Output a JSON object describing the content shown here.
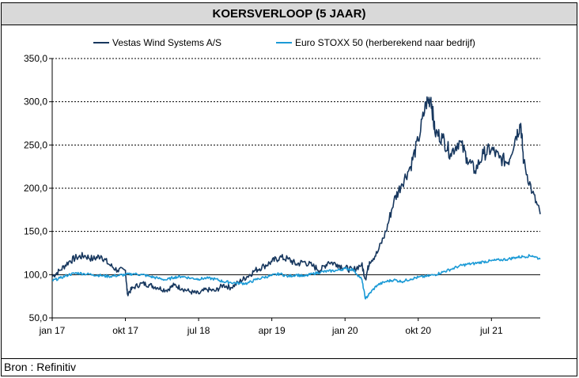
{
  "title": "KOERSVERLOOP (5 JAAR)",
  "source": "Bron : Refinitiv",
  "chart_data": {
    "type": "line",
    "title": "KOERSVERLOOP (5 JAAR)",
    "ylim": [
      50,
      350
    ],
    "yticks": [
      "50,0",
      "100,0",
      "150,0",
      "200,0",
      "250,0",
      "300,0",
      "350,0"
    ],
    "ytick_values": [
      50,
      100,
      150,
      200,
      250,
      300,
      350
    ],
    "xticks": [
      "jan 17",
      "okt 17",
      "jul 18",
      "apr 19",
      "jan 20",
      "okt 20",
      "jul 21"
    ],
    "xtick_values": [
      2017.0,
      2017.75,
      2018.5,
      2019.25,
      2020.0,
      2020.75,
      2021.5
    ],
    "xlim": [
      2017.0,
      2022.0
    ],
    "grid": "horizontal dashed",
    "legend": "top",
    "series": [
      {
        "name": "Vestas Wind Systems A/S",
        "color": "#17375e",
        "x": [
          2017.0,
          2017.08,
          2017.17,
          2017.25,
          2017.33,
          2017.42,
          2017.5,
          2017.58,
          2017.67,
          2017.75,
          2017.77,
          2017.83,
          2017.92,
          2018.0,
          2018.08,
          2018.17,
          2018.25,
          2018.33,
          2018.42,
          2018.5,
          2018.58,
          2018.67,
          2018.75,
          2018.83,
          2018.92,
          2019.0,
          2019.08,
          2019.17,
          2019.25,
          2019.33,
          2019.42,
          2019.5,
          2019.58,
          2019.67,
          2019.75,
          2019.83,
          2019.92,
          2020.0,
          2020.08,
          2020.17,
          2020.21,
          2020.25,
          2020.33,
          2020.42,
          2020.5,
          2020.58,
          2020.67,
          2020.75,
          2020.83,
          2020.88,
          2020.92,
          2021.0,
          2021.08,
          2021.17,
          2021.25,
          2021.33,
          2021.42,
          2021.5,
          2021.58,
          2021.67,
          2021.75,
          2021.8,
          2021.83,
          2021.92,
          2022.0
        ],
        "values": [
          98,
          105,
          115,
          120,
          122,
          118,
          122,
          112,
          105,
          105,
          78,
          85,
          90,
          88,
          85,
          82,
          88,
          84,
          80,
          78,
          83,
          81,
          88,
          85,
          92,
          98,
          105,
          110,
          115,
          120,
          118,
          112,
          115,
          110,
          105,
          115,
          112,
          108,
          105,
          112,
          95,
          115,
          125,
          150,
          185,
          205,
          225,
          255,
          298,
          305,
          265,
          258,
          240,
          255,
          235,
          220,
          240,
          245,
          235,
          230,
          260,
          275,
          230,
          195,
          170
        ]
      },
      {
        "name": "Euro STOXX 50 (herberekend naar bedrijf)",
        "color": "#1b9ad6",
        "x": [
          2017.0,
          2017.08,
          2017.17,
          2017.25,
          2017.33,
          2017.42,
          2017.5,
          2017.58,
          2017.67,
          2017.75,
          2017.83,
          2017.92,
          2018.0,
          2018.08,
          2018.17,
          2018.25,
          2018.33,
          2018.42,
          2018.5,
          2018.58,
          2018.67,
          2018.75,
          2018.83,
          2018.92,
          2019.0,
          2019.08,
          2019.17,
          2019.25,
          2019.33,
          2019.42,
          2019.5,
          2019.58,
          2019.67,
          2019.75,
          2019.83,
          2019.92,
          2020.0,
          2020.08,
          2020.17,
          2020.21,
          2020.25,
          2020.33,
          2020.42,
          2020.5,
          2020.58,
          2020.67,
          2020.75,
          2020.83,
          2020.92,
          2021.0,
          2021.08,
          2021.17,
          2021.25,
          2021.33,
          2021.42,
          2021.5,
          2021.58,
          2021.67,
          2021.75,
          2021.83,
          2021.92,
          2022.0
        ],
        "values": [
          93,
          96,
          100,
          102,
          101,
          100,
          99,
          98,
          99,
          100,
          101,
          100,
          98,
          96,
          94,
          97,
          98,
          96,
          95,
          96,
          95,
          92,
          91,
          90,
          90,
          94,
          97,
          99,
          101,
          98,
          100,
          98,
          101,
          103,
          104,
          105,
          107,
          106,
          95,
          72,
          78,
          88,
          92,
          94,
          92,
          95,
          97,
          98,
          100,
          103,
          106,
          110,
          112,
          113,
          115,
          116,
          117,
          118,
          120,
          121,
          122,
          118
        ]
      }
    ]
  }
}
